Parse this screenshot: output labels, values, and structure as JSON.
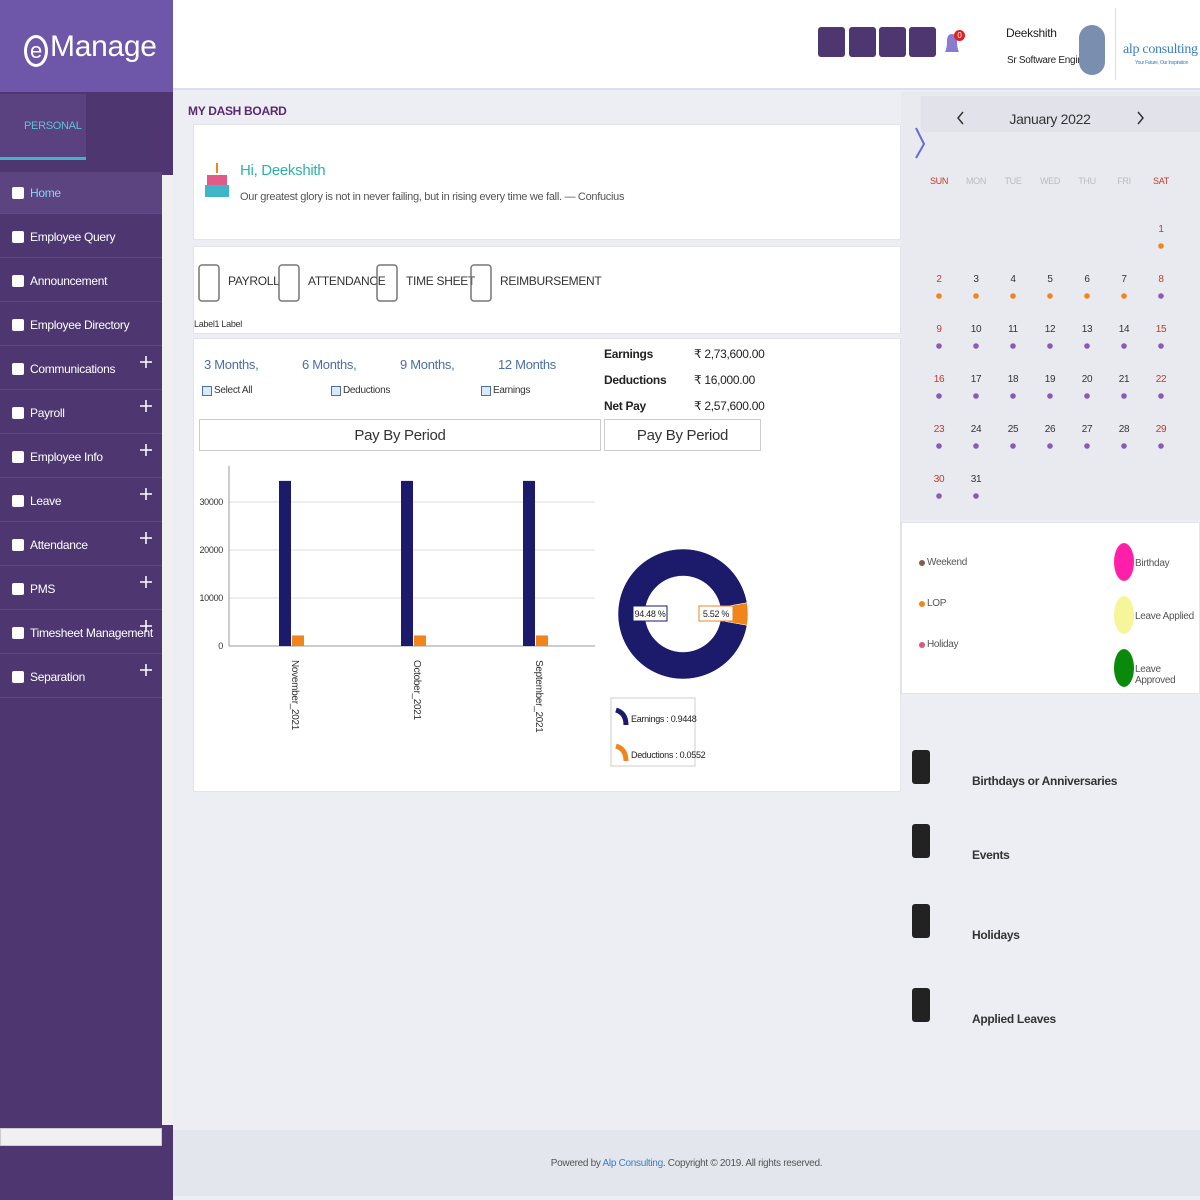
{
  "header": {
    "logo_mark": "e",
    "logo_text": "Manage",
    "user_name": "Deekshith",
    "user_role": "Sr Software Engineer",
    "notification_count": "0",
    "company_name": "alp consulting",
    "company_tagline": "Your Future, Our Inspiration"
  },
  "sidebar": {
    "tab": "PERSONAL",
    "menu": [
      {
        "label": "Home",
        "expandable": false,
        "active": true
      },
      {
        "label": "Employee Query",
        "expandable": false,
        "active": false
      },
      {
        "label": "Announcement",
        "expandable": false,
        "active": false
      },
      {
        "label": "Employee Directory",
        "expandable": false,
        "active": false
      },
      {
        "label": "Communications",
        "expandable": true,
        "active": false
      },
      {
        "label": "Payroll",
        "expandable": true,
        "active": false
      },
      {
        "label": "Employee Info",
        "expandable": true,
        "active": false
      },
      {
        "label": "Leave",
        "expandable": true,
        "active": false
      },
      {
        "label": "Attendance",
        "expandable": true,
        "active": false
      },
      {
        "label": "PMS",
        "expandable": true,
        "active": false
      },
      {
        "label": "Timesheet Management",
        "expandable": true,
        "active": false
      },
      {
        "label": "Separation",
        "expandable": true,
        "active": false
      }
    ]
  },
  "dashboard": {
    "title": "MY DASH BOARD",
    "greeting": "Hi, Deekshith",
    "quote": "Our greatest glory is not in never failing, but in rising every time we fall. — Confucius",
    "tabs": [
      "PAYROLL",
      "ATTENDANCE",
      "TIME SHEET",
      "REIMBURSEMENT"
    ],
    "tab_caption": "Label1 Label",
    "periods": [
      "3 Months,",
      "6 Months,",
      "9 Months,",
      "12 Months"
    ],
    "filters": [
      "Select All",
      "Deductions",
      "Earnings"
    ],
    "summary": [
      {
        "label": "Earnings",
        "amount": "₹ 2,73,600.00"
      },
      {
        "label": "Deductions",
        "amount": "₹ 16,000.00"
      },
      {
        "label": "Net Pay",
        "amount": "₹ 2,57,600.00"
      }
    ]
  },
  "bar_chart": {
    "type": "bar",
    "title": "Pay By Period",
    "categories": [
      "November_2021",
      "October_2021",
      "September_2021"
    ],
    "series": [
      {
        "color": "#1b1a6b",
        "values": [
          34400,
          34400,
          34400
        ]
      },
      {
        "color": "#f0851c",
        "values": [
          2200,
          2200,
          2200
        ]
      }
    ],
    "ylim": [
      0,
      37500
    ],
    "yticks": [
      0,
      10000,
      20000,
      30000
    ],
    "grid": true
  },
  "pie_chart": {
    "type": "donut",
    "title": "Pay By Period",
    "categories": [
      "Earnings",
      "Deductions"
    ],
    "values": [
      94.48,
      5.52
    ],
    "value_labels": [
      "94.48 %",
      "5.52 %"
    ],
    "colors": [
      "#1b1a6b",
      "#f0851c"
    ],
    "legend_labels": [
      "Earnings : 0.9448",
      "Deductions : 0.0552"
    ]
  },
  "calendar": {
    "month": "January 2022",
    "weekdays": [
      "SUN",
      "MON",
      "TUE",
      "WED",
      "THU",
      "FRI",
      "SAT"
    ],
    "weekend_color": "#c0392b",
    "weeks": [
      [
        null,
        null,
        null,
        null,
        null,
        null,
        {
          "day": 1,
          "dot": "#f0851c"
        }
      ],
      [
        {
          "day": 2,
          "dot": "#f0851c"
        },
        {
          "day": 3,
          "dot": "#f0851c"
        },
        {
          "day": 4,
          "dot": "#f0851c"
        },
        {
          "day": 5,
          "dot": "#f0851c"
        },
        {
          "day": 6,
          "dot": "#f0851c"
        },
        {
          "day": 7,
          "dot": "#f0851c"
        },
        {
          "day": 8,
          "dot": "#8a5bb5"
        }
      ],
      [
        {
          "day": 9,
          "dot": "#8a5bb5"
        },
        {
          "day": 10,
          "dot": "#8a5bb5"
        },
        {
          "day": 11,
          "dot": "#8a5bb5"
        },
        {
          "day": 12,
          "dot": "#8a5bb5"
        },
        {
          "day": 13,
          "dot": "#8a5bb5"
        },
        {
          "day": 14,
          "dot": "#8a5bb5"
        },
        {
          "day": 15,
          "dot": "#8a5bb5"
        }
      ],
      [
        {
          "day": 16,
          "dot": "#8a5bb5"
        },
        {
          "day": 17,
          "dot": "#8a5bb5"
        },
        {
          "day": 18,
          "dot": "#8a5bb5"
        },
        {
          "day": 19,
          "dot": "#8a5bb5"
        },
        {
          "day": 20,
          "dot": "#8a5bb5"
        },
        {
          "day": 21,
          "dot": "#8a5bb5"
        },
        {
          "day": 22,
          "dot": "#8a5bb5"
        }
      ],
      [
        {
          "day": 23,
          "dot": "#8a5bb5"
        },
        {
          "day": 24,
          "dot": "#8a5bb5"
        },
        {
          "day": 25,
          "dot": "#8a5bb5"
        },
        {
          "day": 26,
          "dot": "#8a5bb5"
        },
        {
          "day": 27,
          "dot": "#8a5bb5"
        },
        {
          "day": 28,
          "dot": "#8a5bb5"
        },
        {
          "day": 29,
          "dot": "#8a5bb5"
        }
      ],
      [
        {
          "day": 30,
          "dot": "#8a5bb5"
        },
        {
          "day": 31,
          "dot": "#8a5bb5"
        },
        null,
        null,
        null,
        null,
        null
      ]
    ]
  },
  "calendar_legend": {
    "dots": [
      {
        "label": "Weekend",
        "color": "#8b5a4a"
      },
      {
        "label": "LOP",
        "color": "#f0851c"
      },
      {
        "label": "Holiday",
        "color": "#e0557a"
      }
    ],
    "circles": [
      {
        "label": "Birthday",
        "color": "#ff1fa8"
      },
      {
        "label": "Leave Applied",
        "color": "#f5f59a"
      },
      {
        "label": "Leave Approved",
        "color": "#0a8a0a"
      }
    ]
  },
  "widgets": [
    "Birthdays or Anniversaries",
    "Events",
    "Holidays",
    "Applied Leaves"
  ],
  "footer": {
    "prefix": "Powered by",
    "link": "Alp Consulting",
    "suffix": ". Copyright © 2019. All rights reserved."
  }
}
